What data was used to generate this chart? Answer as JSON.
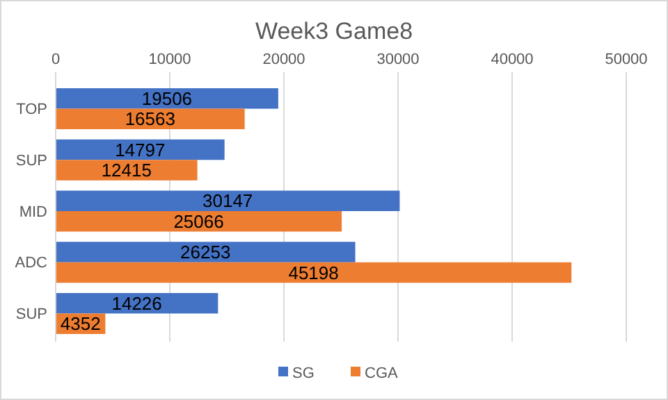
{
  "chart_data": {
    "type": "bar",
    "orientation": "horizontal",
    "title": "Week3 Game8",
    "categories": [
      "TOP",
      "SUP",
      "MID",
      "ADC",
      "SUP"
    ],
    "series": [
      {
        "name": "SG",
        "color": "#4472c4",
        "values": [
          19506,
          14797,
          30147,
          26253,
          14226
        ]
      },
      {
        "name": "CGA",
        "color": "#ed7d31",
        "values": [
          16563,
          12415,
          25066,
          45198,
          4352
        ]
      }
    ],
    "xlim": [
      0,
      50000
    ],
    "xticks": [
      0,
      10000,
      20000,
      30000,
      40000,
      50000
    ],
    "grid": "x",
    "legend": "bottom",
    "data_labels": true
  }
}
